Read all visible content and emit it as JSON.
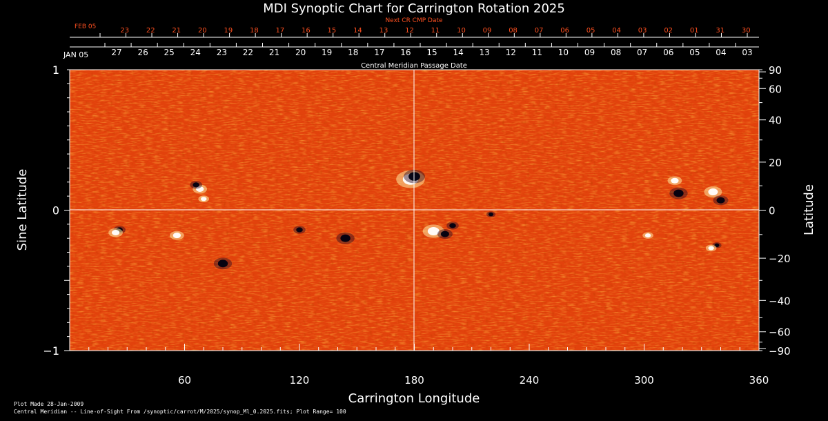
{
  "colors": {
    "background": "#000000",
    "plot_base": "#e84a10",
    "accent_red": "#ff5020",
    "grid": "#ffffff"
  },
  "chart_data": {
    "type": "heatmap",
    "title": "MDI Synoptic Chart for Carrington Rotation 2025",
    "xlabel": "Carrington Longitude",
    "ylabel_left": "Sine Latitude",
    "ylabel_right": "Latitude",
    "xlim": [
      0,
      360
    ],
    "ylim": [
      -1,
      1
    ],
    "x_ticks": [
      60,
      120,
      180,
      240,
      300,
      360
    ],
    "y_ticks_left": [
      -1,
      0,
      1
    ],
    "y_tick_labels_left": [
      "−1",
      "0",
      "1"
    ],
    "y_ticks_right": [
      -90,
      -60,
      -40,
      -20,
      0,
      20,
      40,
      60,
      90
    ],
    "y_tick_labels_right": [
      "−90",
      "−60",
      "−40",
      "−20",
      "0",
      "20",
      "40",
      "60",
      "90"
    ],
    "central_meridian_label": "Central Meridian Passage Date",
    "next_cr_label": "Next CR CMP Date",
    "top_axis_red_start": "FEB 05",
    "top_axis_red_days": [
      "23",
      "22",
      "21",
      "20",
      "19",
      "18",
      "17",
      "16",
      "15",
      "14",
      "13",
      "12",
      "11",
      "10",
      "09",
      "08",
      "07",
      "06",
      "05",
      "04",
      "03",
      "02",
      "01",
      "31",
      "30"
    ],
    "top_axis_white_start": "JAN 05",
    "top_axis_white_days": [
      "27",
      "26",
      "25",
      "24",
      "23",
      "22",
      "21",
      "20",
      "19",
      "18",
      "17",
      "16",
      "15",
      "14",
      "13",
      "12",
      "11",
      "10",
      "09",
      "08",
      "07",
      "06",
      "05",
      "04",
      "03"
    ],
    "footer_line1": "Plot Made 28-Jan-2009",
    "footer_line2": "Central Meridian -- Line-of-Sight From /synoptic/carrot/M/2025/synop_Ml_0.2025.fits; Plot Range=  100",
    "active_regions": [
      {
        "lon": 178,
        "sinlat": 0.22,
        "pol": "white",
        "size": 8
      },
      {
        "lon": 180,
        "sinlat": 0.24,
        "pol": "dark",
        "size": 7
      },
      {
        "lon": 26,
        "sinlat": -0.14,
        "pol": "dark",
        "size": 4
      },
      {
        "lon": 24,
        "sinlat": -0.16,
        "pol": "white",
        "size": 4
      },
      {
        "lon": 56,
        "sinlat": -0.18,
        "pol": "white",
        "size": 4
      },
      {
        "lon": 68,
        "sinlat": 0.15,
        "pol": "white",
        "size": 4
      },
      {
        "lon": 70,
        "sinlat": 0.08,
        "pol": "white",
        "size": 3
      },
      {
        "lon": 66,
        "sinlat": 0.18,
        "pol": "dark",
        "size": 4
      },
      {
        "lon": 80,
        "sinlat": -0.38,
        "pol": "dark",
        "size": 6
      },
      {
        "lon": 120,
        "sinlat": -0.14,
        "pol": "dark",
        "size": 4
      },
      {
        "lon": 144,
        "sinlat": -0.2,
        "pol": "dark",
        "size": 6
      },
      {
        "lon": 190,
        "sinlat": -0.15,
        "pol": "white",
        "size": 6
      },
      {
        "lon": 196,
        "sinlat": -0.17,
        "pol": "dark",
        "size": 5
      },
      {
        "lon": 200,
        "sinlat": -0.11,
        "pol": "dark",
        "size": 4
      },
      {
        "lon": 220,
        "sinlat": -0.03,
        "pol": "dark",
        "size": 3
      },
      {
        "lon": 316,
        "sinlat": 0.21,
        "pol": "white",
        "size": 4
      },
      {
        "lon": 318,
        "sinlat": 0.12,
        "pol": "dark",
        "size": 6
      },
      {
        "lon": 336,
        "sinlat": 0.13,
        "pol": "white",
        "size": 5
      },
      {
        "lon": 340,
        "sinlat": 0.07,
        "pol": "dark",
        "size": 5
      },
      {
        "lon": 338,
        "sinlat": -0.25,
        "pol": "dark",
        "size": 3
      },
      {
        "lon": 335,
        "sinlat": -0.27,
        "pol": "white",
        "size": 3
      },
      {
        "lon": 302,
        "sinlat": -0.18,
        "pol": "white",
        "size": 3
      }
    ]
  }
}
